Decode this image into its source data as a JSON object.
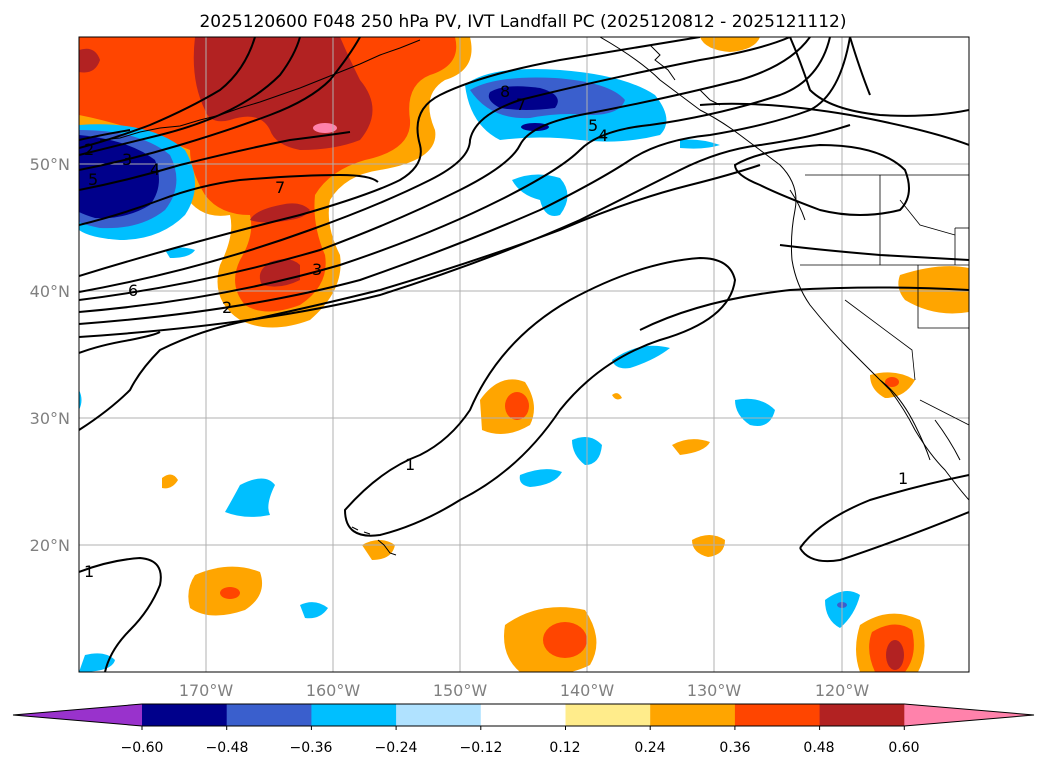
{
  "title": "2025120600 F048 250 hPa PV, IVT Landfall PC (2025120812 - 2025121112)",
  "axes": {
    "lat_ticks": [
      "20°N",
      "30°N",
      "40°N",
      "50°N"
    ],
    "lon_ticks": [
      "170°W",
      "160°W",
      "150°W",
      "140°W",
      "130°W",
      "120°W"
    ],
    "lat_values": [
      20,
      30,
      40,
      50
    ],
    "lon_values": [
      -170,
      -160,
      -150,
      -140,
      -130,
      -120
    ],
    "lon_range": [
      -180,
      -110
    ],
    "lat_range": [
      10,
      60
    ]
  },
  "colorbar": {
    "ticks": [
      "−0.60",
      "−0.48",
      "−0.36",
      "−0.24",
      "−0.12",
      "0.12",
      "0.24",
      "0.36",
      "0.48",
      "0.60"
    ],
    "colors": [
      "#9932cc",
      "#00008b",
      "#3a5fcd",
      "#00bfff",
      "#b0e2ff",
      "#ffffff",
      "#ffec8b",
      "#ffa500",
      "#ff4500",
      "#b22222",
      "#ff82ab"
    ]
  },
  "contour_labels": [
    "2",
    "3",
    "4",
    "5",
    "6",
    "7",
    "8",
    "5",
    "4",
    "7",
    "6",
    "3",
    "2",
    "1",
    "1",
    "1"
  ],
  "colors": {
    "contour": "#000000",
    "grid": "#b0b0b0",
    "coast": "#000000"
  }
}
